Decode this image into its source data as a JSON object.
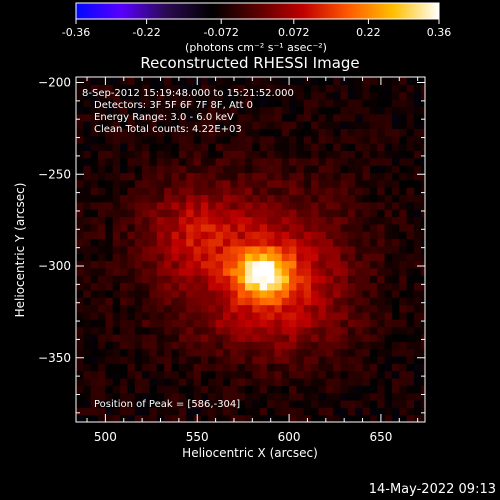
{
  "colorbar": {
    "ticks": [
      "-0.36",
      "-0.22",
      "-0.072",
      "0.072",
      "0.22",
      "0.36"
    ],
    "values": [
      -0.36,
      -0.22,
      -0.072,
      0.072,
      0.22,
      0.36
    ],
    "range": [
      -0.36,
      0.36
    ],
    "unit_label": "(photons cm⁻² s⁻¹ asec⁻²)",
    "stops": [
      "#0008ff",
      "#5a00ff",
      "#2a0a50",
      "#000000",
      "#5a0000",
      "#c00000",
      "#ff5a00",
      "#ffc000",
      "#ffffff"
    ]
  },
  "chart_data": {
    "type": "heatmap",
    "title": "Reconstructed RHESSI Image",
    "xlabel": "Heliocentric X (arcsec)",
    "ylabel": "Heliocentric Y (arcsec)",
    "xlim": [
      484,
      674
    ],
    "ylim": [
      -385,
      -197
    ],
    "x_ticks": [
      500,
      550,
      600,
      650
    ],
    "y_ticks": [
      -200,
      -250,
      -300,
      -350
    ],
    "annotations": [
      " 8-Sep-2012 15:19:48.000 to 15:21:52.000",
      "Detectors: 3F 5F 6F 7F 8F, Att 0",
      "Energy Range: 3.0 - 6.0 keV",
      "Clean    Total counts: 4.22E+03"
    ],
    "peak_label": "Position of Peak = [586,-304]",
    "peak": {
      "x": 586,
      "y": -304,
      "value": 0.36
    },
    "sources": [
      {
        "x": 586,
        "y": -304,
        "sx": 11,
        "sy": 9,
        "amp": 0.3
      },
      {
        "x": 578,
        "y": -295,
        "sx": 38,
        "sy": 28,
        "amp": 0.13
      },
      {
        "x": 548,
        "y": -278,
        "sx": 18,
        "sy": 18,
        "amp": 0.09
      },
      {
        "x": 585,
        "y": -330,
        "sx": 28,
        "sy": 16,
        "amp": 0.07
      },
      {
        "x": 610,
        "y": -310,
        "sx": 20,
        "sy": 28,
        "amp": 0.05
      }
    ],
    "background_value": -0.07,
    "colormap": "blue-purple-black-red-yellow-white",
    "grid": false
  },
  "timestamp": "14-May-2022 09:13"
}
